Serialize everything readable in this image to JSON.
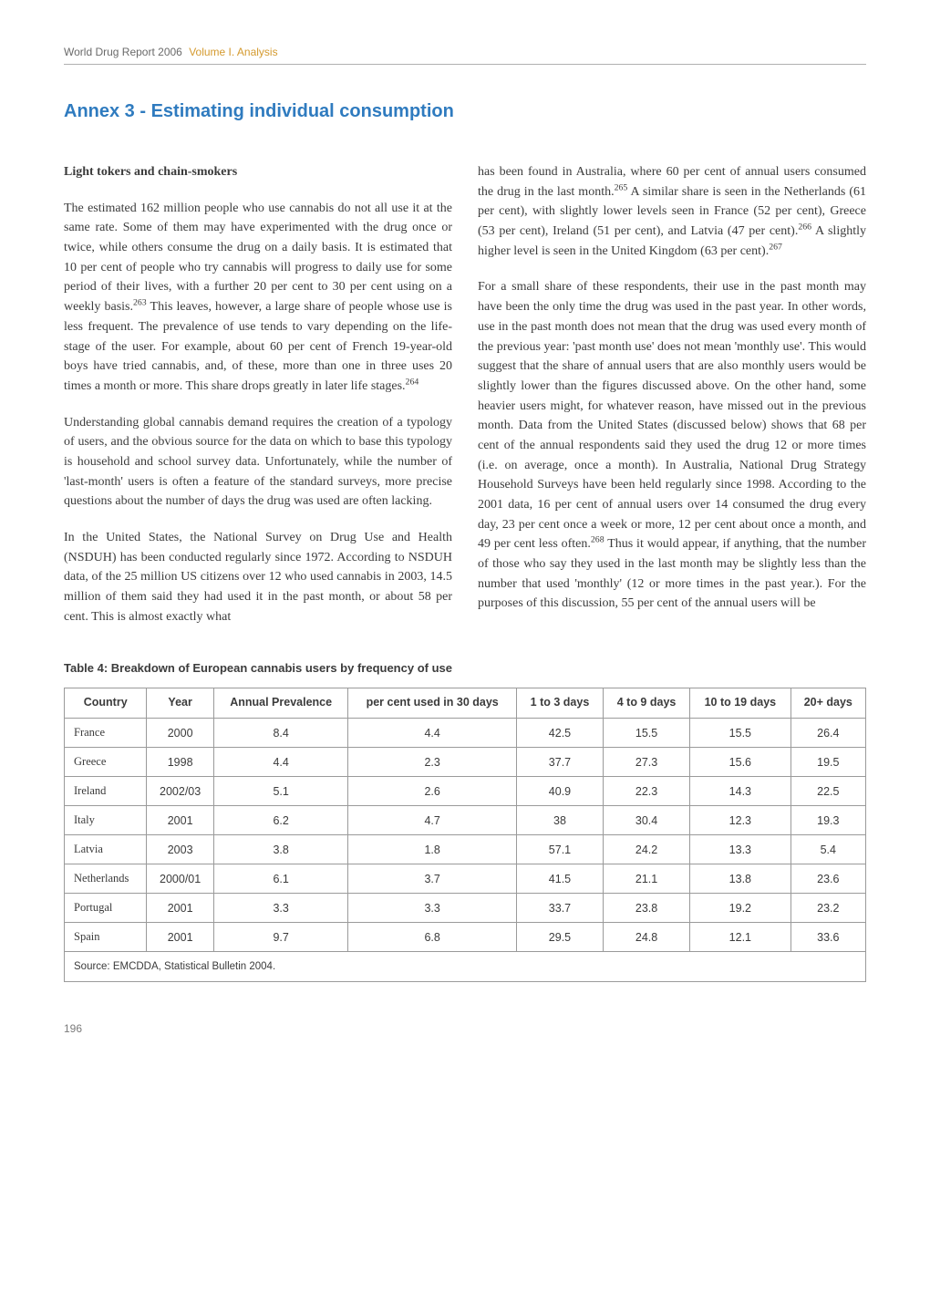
{
  "runningHead": {
    "part1": "World Drug Report 2006",
    "part2": "Volume I. Analysis"
  },
  "title": "Annex 3 -  Estimating individual consumption",
  "leftColumn": {
    "subhead": "Light tokers and chain-smokers",
    "p1a": "The estimated 162 million people who use cannabis do not all use it at the same rate. Some of them may have experimented with the drug once or twice, while others consume the drug on a daily basis. It is estimated that 10 per cent of people who try cannabis will progress to daily use for some period of their lives, with a further 20 per cent to 30 per cent using on a weekly basis.",
    "p1sup1": "263",
    "p1b": " This leaves, however, a large share of people whose use is less frequent. The prevalence of use tends to vary depending on the life-stage of the user. For example, about 60 per cent of French 19-year-old boys have tried cannabis, and, of these, more than one in three uses 20 times a month or more. This share drops greatly in later life stages.",
    "p1sup2": "264",
    "p2": "Understanding global cannabis demand requires the creation of a typology of users, and the obvious source for the data on which to base this typology is household and school survey data. Unfortunately, while the number of 'last-month' users is often a feature of the standard surveys, more precise questions about the number of days the drug was used are often lacking.",
    "p3": "In the United States, the National Survey on Drug Use and Health (NSDUH) has been conducted regularly since 1972. According to NSDUH data, of the 25 million US citizens over 12 who used cannabis in 2003, 14.5 million of them said they had used it in the past month, or about 58 per cent. This is almost exactly what"
  },
  "rightColumn": {
    "p1a": "has been found in Australia, where 60 per cent of annual users consumed the drug in the last month.",
    "p1sup1": "265",
    "p1b": " A similar share is seen in the Netherlands (61 per cent), with slightly lower levels seen in France (52 per cent), Greece (53 per cent), Ireland (51 per cent), and Latvia (47 per cent).",
    "p1sup2": "266",
    "p1c": " A slightly higher level is seen in the United Kingdom (63 per cent).",
    "p1sup3": "267",
    "p2a": "For a small share of these respondents, their use in the past month may have been the only time the drug was used in the past year. In other words, use in the past month does not mean that the drug was used every month of the previous year: 'past month use' does not mean 'monthly use'. This would suggest that the share of annual users that are also monthly users would be slightly lower than the figures discussed above. On the other hand, some heavier users might, for whatever reason, have missed out in the previous month. Data from the United States (discussed below) shows that 68 per cent of the annual respondents said they used the drug 12 or more times (i.e. on average, once a month). In Australia, National Drug Strategy Household Surveys have been held regularly since 1998. According to the 2001 data, 16 per cent of annual users over 14 consumed the drug every day, 23 per cent once a week or more, 12 per cent about once a month, and 49 per cent less often.",
    "p2sup1": "268",
    "p2b": " Thus it would appear, if anything, that the number of those who say they used in the last month may be slightly less than the number that used 'monthly' (12 or more times in the past year.). For the purposes of this discussion, 55 per cent of the annual users will be"
  },
  "table": {
    "caption": "Table 4: Breakdown of European cannabis users by frequency of use",
    "headers": {
      "country": "Country",
      "year": "Year",
      "annual": "Annual Prevalence",
      "pcu": "per cent used in 30 days",
      "d13": "1 to 3 days",
      "d49": "4 to 9 days",
      "d1019": "10 to 19 days",
      "d20": "20+ days"
    },
    "rows": [
      {
        "country": "France",
        "year": "2000",
        "annual": "8.4",
        "pcu": "4.4",
        "d13": "42.5",
        "d49": "15.5",
        "d1019": "15.5",
        "d20": "26.4"
      },
      {
        "country": "Greece",
        "year": "1998",
        "annual": "4.4",
        "pcu": "2.3",
        "d13": "37.7",
        "d49": "27.3",
        "d1019": "15.6",
        "d20": "19.5"
      },
      {
        "country": "Ireland",
        "year": "2002/03",
        "annual": "5.1",
        "pcu": "2.6",
        "d13": "40.9",
        "d49": "22.3",
        "d1019": "14.3",
        "d20": "22.5"
      },
      {
        "country": "Italy",
        "year": "2001",
        "annual": "6.2",
        "pcu": "4.7",
        "d13": "38",
        "d49": "30.4",
        "d1019": "12.3",
        "d20": "19.3"
      },
      {
        "country": "Latvia",
        "year": "2003",
        "annual": "3.8",
        "pcu": "1.8",
        "d13": "57.1",
        "d49": "24.2",
        "d1019": "13.3",
        "d20": "5.4"
      },
      {
        "country": "Netherlands",
        "year": "2000/01",
        "annual": "6.1",
        "pcu": "3.7",
        "d13": "41.5",
        "d49": "21.1",
        "d1019": "13.8",
        "d20": "23.6"
      },
      {
        "country": "Portugal",
        "year": "2001",
        "annual": "3.3",
        "pcu": "3.3",
        "d13": "33.7",
        "d49": "23.8",
        "d1019": "19.2",
        "d20": "23.2"
      },
      {
        "country": "Spain",
        "year": "2001",
        "annual": "9.7",
        "pcu": "6.8",
        "d13": "29.5",
        "d49": "24.8",
        "d1019": "12.1",
        "d20": "33.6"
      }
    ],
    "source": "Source: EMCDDA, Statistical Bulletin 2004."
  },
  "pageNumber": "196"
}
